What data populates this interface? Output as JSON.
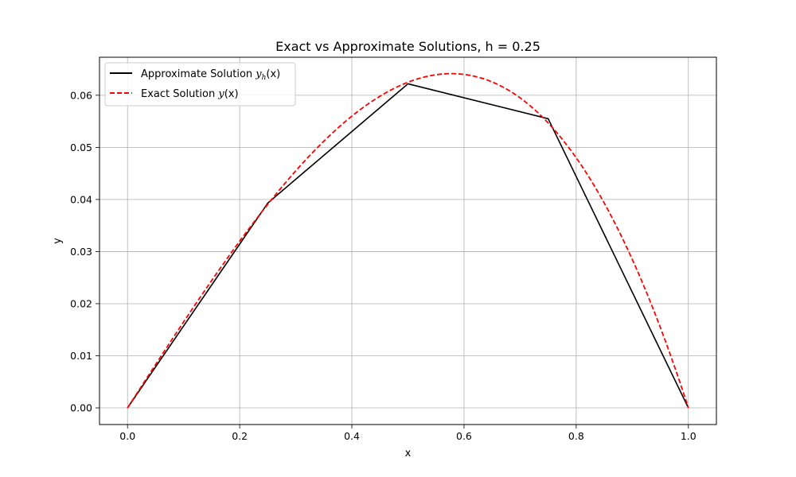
{
  "chart_data": {
    "type": "line",
    "title": "Exact vs Approximate Solutions, h = 0.25",
    "xlabel": "x",
    "ylabel": "y",
    "xlim": [
      -0.05,
      1.05
    ],
    "ylim": [
      -0.0032,
      0.0673
    ],
    "xticks": [
      0.0,
      0.2,
      0.4,
      0.6,
      0.8,
      1.0
    ],
    "xtick_labels": [
      "0.0",
      "0.2",
      "0.4",
      "0.6",
      "0.8",
      "1.0"
    ],
    "yticks": [
      0.0,
      0.01,
      0.02,
      0.03,
      0.04,
      0.05,
      0.06
    ],
    "ytick_labels": [
      "0.00",
      "0.01",
      "0.02",
      "0.03",
      "0.04",
      "0.05",
      "0.06"
    ],
    "grid": true,
    "legend_position": "top-left",
    "series": [
      {
        "name": "Approximate Solution y_h(x)",
        "legend_prefix": "Approximate Solution ",
        "legend_math": "y",
        "legend_sub": "h",
        "legend_suffix": "(x)",
        "color": "#000000",
        "dash": "solid",
        "x": [
          0.0,
          0.25,
          0.5,
          0.75,
          1.0
        ],
        "y": [
          0.0,
          0.0393,
          0.0622,
          0.0555,
          0.0
        ]
      },
      {
        "name": "Exact Solution y(x)",
        "legend_prefix": "Exact Solution ",
        "legend_math": "y",
        "legend_sub": "",
        "legend_suffix": "(x)",
        "color": "#ff0000",
        "dash": "dashed",
        "x": [
          0.0,
          0.05,
          0.1,
          0.15,
          0.2,
          0.25,
          0.3,
          0.35,
          0.4,
          0.45,
          0.5,
          0.55,
          0.5774,
          0.6,
          0.65,
          0.7,
          0.75,
          0.8,
          0.85,
          0.9,
          0.95,
          1.0
        ],
        "y": [
          0.0,
          0.00836,
          0.01663,
          0.02471,
          0.03251,
          0.03993,
          0.04688,
          0.05325,
          0.05895,
          0.06388,
          0.0625,
          0.06415,
          0.06415,
          0.06405,
          0.06286,
          0.0595,
          0.0548,
          0.04788,
          0.03858,
          0.02638,
          0.01318,
          0.0
        ]
      }
    ]
  }
}
